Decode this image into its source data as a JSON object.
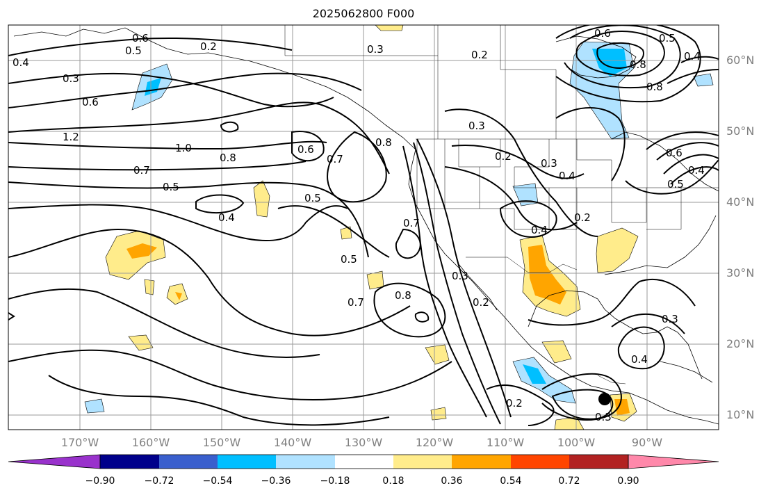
{
  "title": "2025062800 F000",
  "lat_labels": [
    "60°N",
    "50°N",
    "40°N",
    "30°N",
    "20°N",
    "10°N"
  ],
  "lon_labels": [
    "170°W",
    "160°W",
    "150°W",
    "140°W",
    "130°W",
    "120°W",
    "110°W",
    "100°W",
    "90°W"
  ],
  "colorbar": {
    "colors": [
      "#9932cc",
      "#00008b",
      "#3a5fcd",
      "#00bfff",
      "#b0e2ff",
      "#ffffff",
      "#ffec8b",
      "#ffa500",
      "#ff4500",
      "#b22222",
      "#ff88aa"
    ],
    "ticks": [
      "−0.90",
      "−0.72",
      "−0.54",
      "−0.36",
      "−0.18",
      "0.18",
      "0.36",
      "0.54",
      "0.72",
      "0.90"
    ]
  },
  "contour_labels": [
    "0.6",
    "0.5",
    "0.2",
    "0.3",
    "0.2",
    "0.6",
    "0.5",
    "0.4",
    "0.8",
    "0.4",
    "0.3",
    "0.6",
    "1.2",
    "1.0",
    "0.8",
    "0.7",
    "0.6",
    "0.7",
    "0.8",
    "0.5",
    "0.4",
    "0.5",
    "0.7",
    "0.5",
    "0.7",
    "0.8",
    "0.3",
    "0.2",
    "0.3",
    "0.2",
    "0.3",
    "0.4",
    "0.4",
    "0.2",
    "0.8",
    "0.4",
    "0.3",
    "0.2",
    "0.3",
    "0.4",
    "0.6",
    "0.5"
  ]
}
